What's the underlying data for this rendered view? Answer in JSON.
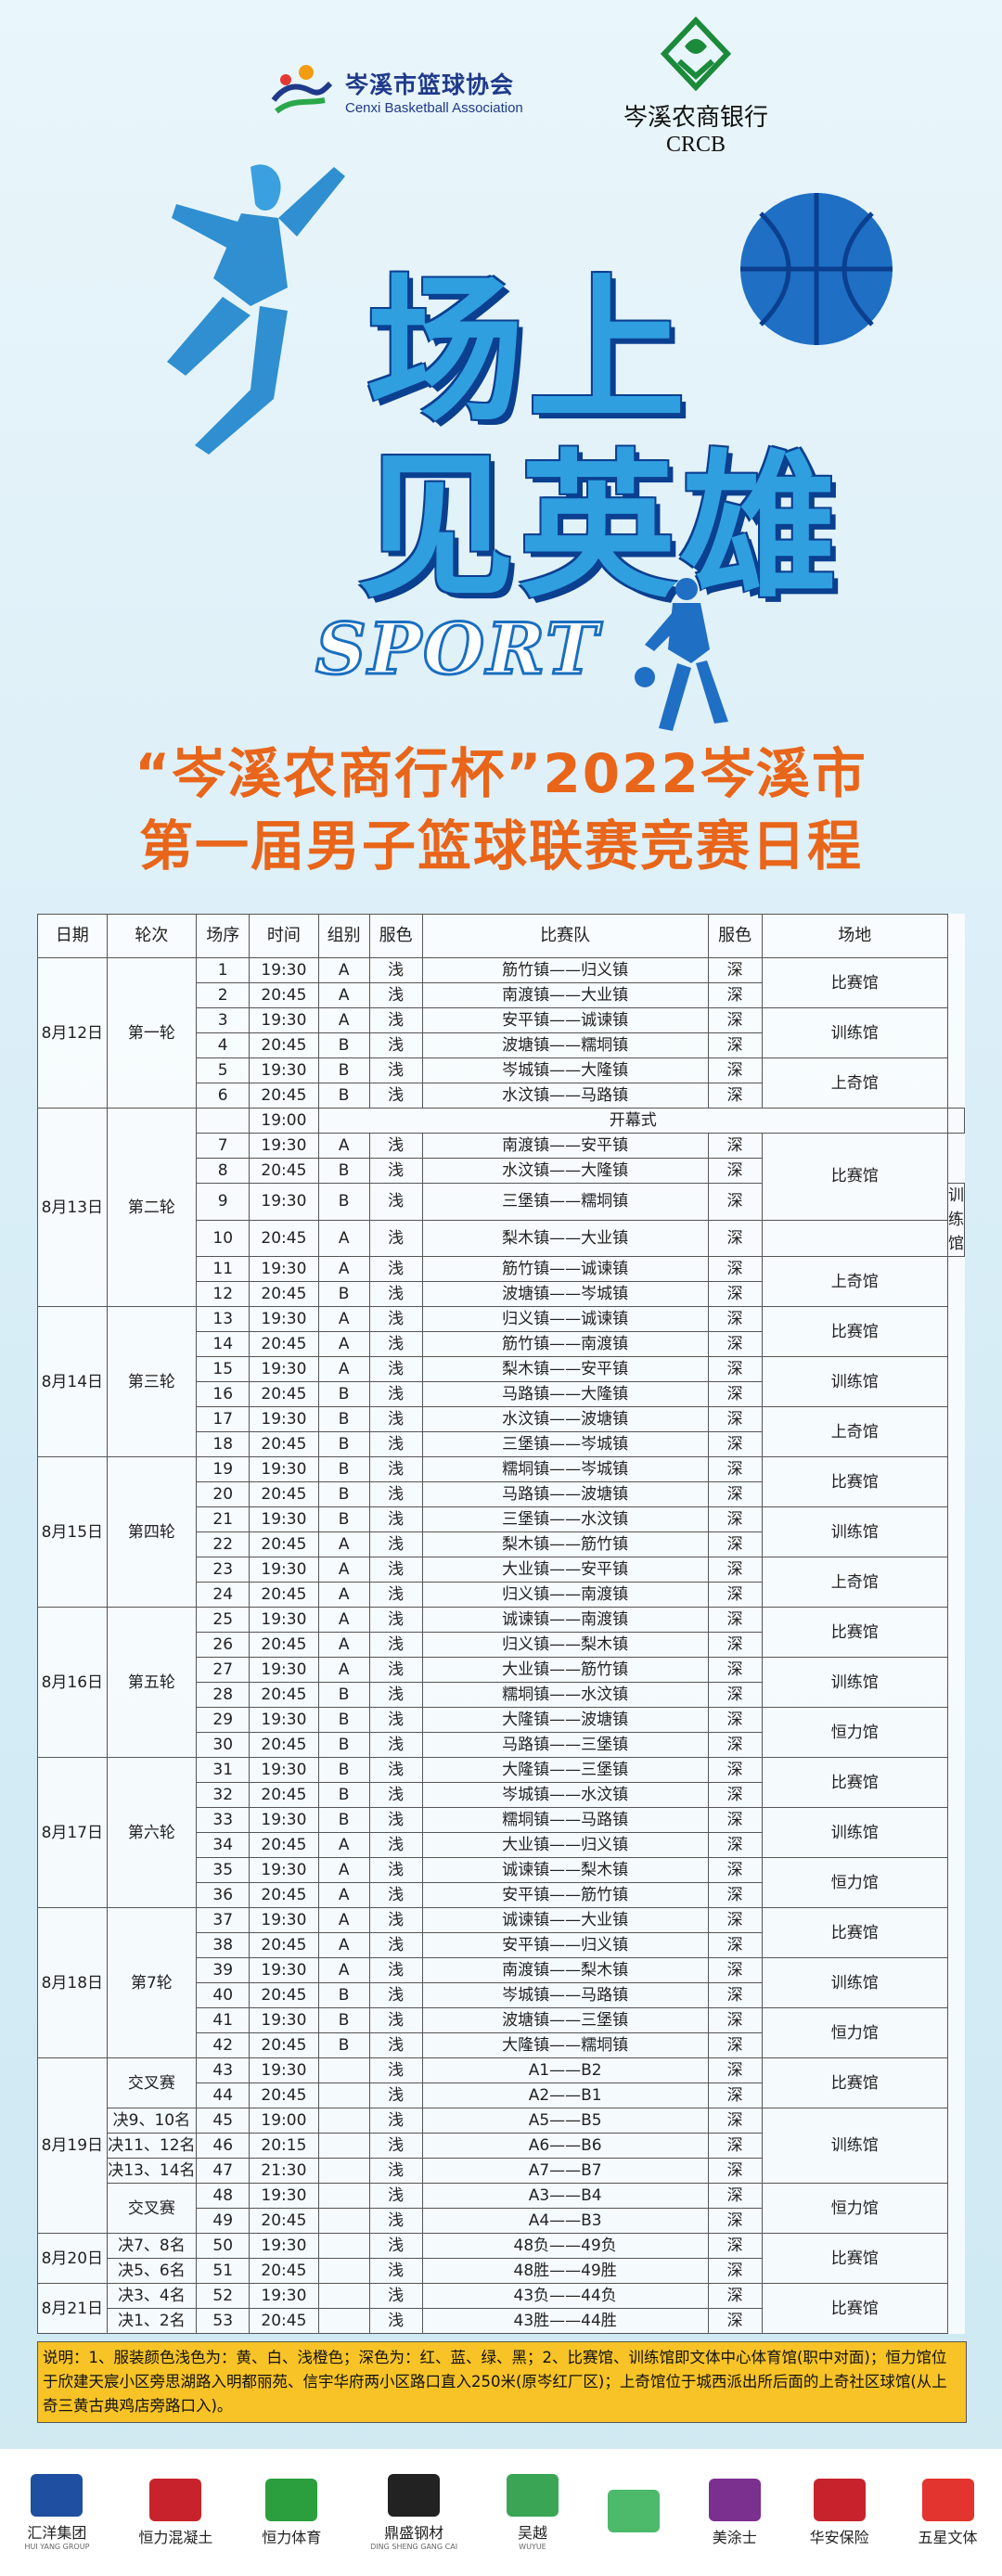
{
  "header": {
    "association_name": "岑溪市篮球协会",
    "association_en": "Cenxi Basketball Association",
    "bank_name": "岑溪农商银行",
    "bank_en": "CRCB",
    "hero_line1": "场上",
    "hero_line2": "见英雄",
    "sport_word": "SPORT"
  },
  "title": {
    "line1": "“岑溪农商行杯”2022岑溪市",
    "line2": "第一届男子篮球联赛竞赛日程"
  },
  "table": {
    "headers": [
      "日期",
      "轮次",
      "场序",
      "时间",
      "组别",
      "服色",
      "比赛队",
      "服色",
      "场地"
    ],
    "groups": [
      {
        "date": "8月12日",
        "round": "第一轮",
        "rows": [
          {
            "no": "1",
            "time": "19:30",
            "grp": "A",
            "c1": "浅",
            "teams": "筋竹镇——归义镇",
            "c2": "深",
            "venue": "比赛馆",
            "span": 2
          },
          {
            "no": "2",
            "time": "20:45",
            "grp": "A",
            "c1": "浅",
            "teams": "南渡镇——大业镇",
            "c2": "深"
          },
          {
            "no": "3",
            "time": "19:30",
            "grp": "A",
            "c1": "浅",
            "teams": "安平镇——诚谏镇",
            "c2": "深",
            "venue": "训练馆",
            "span": 2
          },
          {
            "no": "4",
            "time": "20:45",
            "grp": "B",
            "c1": "浅",
            "teams": "波塘镇——糯垌镇",
            "c2": "深"
          },
          {
            "no": "5",
            "time": "19:30",
            "grp": "B",
            "c1": "浅",
            "teams": "岑城镇——大隆镇",
            "c2": "深",
            "venue": "上奇馆",
            "span": 2
          },
          {
            "no": "6",
            "time": "20:45",
            "grp": "B",
            "c1": "浅",
            "teams": "水汶镇——马路镇",
            "c2": "深"
          }
        ]
      },
      {
        "date": "8月13日",
        "round": "第二轮",
        "rows": [
          {
            "no": "",
            "time": "19:00",
            "opening": "开幕式"
          },
          {
            "no": "7",
            "time": "19:30",
            "grp": "A",
            "c1": "浅",
            "teams": "南渡镇——安平镇",
            "c2": "深",
            "venue": "比赛馆",
            "span": 3
          },
          {
            "no": "8",
            "time": "20:45",
            "grp": "B",
            "c1": "浅",
            "teams": "水汶镇——大隆镇",
            "c2": "深"
          },
          {
            "no": "9",
            "time": "19:30",
            "grp": "B",
            "c1": "浅",
            "teams": "三堡镇——糯垌镇",
            "c2": "深",
            "venue": "训练馆",
            "span": 2
          },
          {
            "no": "10",
            "time": "20:45",
            "grp": "A",
            "c1": "浅",
            "teams": "梨木镇——大业镇",
            "c2": "深"
          },
          {
            "no": "11",
            "time": "19:30",
            "grp": "A",
            "c1": "浅",
            "teams": "筋竹镇——诚谏镇",
            "c2": "深",
            "venue": "上奇馆",
            "span": 2
          },
          {
            "no": "12",
            "time": "20:45",
            "grp": "B",
            "c1": "浅",
            "teams": "波塘镇——岑城镇",
            "c2": "深"
          }
        ]
      },
      {
        "date": "8月14日",
        "round": "第三轮",
        "rows": [
          {
            "no": "13",
            "time": "19:30",
            "grp": "A",
            "c1": "浅",
            "teams": "归义镇——诚谏镇",
            "c2": "深",
            "venue": "比赛馆",
            "span": 2
          },
          {
            "no": "14",
            "time": "20:45",
            "grp": "A",
            "c1": "浅",
            "teams": "筋竹镇——南渡镇",
            "c2": "深"
          },
          {
            "no": "15",
            "time": "19:30",
            "grp": "A",
            "c1": "浅",
            "teams": "梨木镇——安平镇",
            "c2": "深",
            "venue": "训练馆",
            "span": 2
          },
          {
            "no": "16",
            "time": "20:45",
            "grp": "B",
            "c1": "浅",
            "teams": "马路镇——大隆镇",
            "c2": "深"
          },
          {
            "no": "17",
            "time": "19:30",
            "grp": "B",
            "c1": "浅",
            "teams": "水汶镇——波塘镇",
            "c2": "深",
            "venue": "上奇馆",
            "span": 2
          },
          {
            "no": "18",
            "time": "20:45",
            "grp": "B",
            "c1": "浅",
            "teams": "三堡镇——岑城镇",
            "c2": "深"
          }
        ]
      },
      {
        "date": "8月15日",
        "round": "第四轮",
        "rows": [
          {
            "no": "19",
            "time": "19:30",
            "grp": "B",
            "c1": "浅",
            "teams": "糯垌镇——岑城镇",
            "c2": "深",
            "venue": "比赛馆",
            "span": 2
          },
          {
            "no": "20",
            "time": "20:45",
            "grp": "B",
            "c1": "浅",
            "teams": "马路镇——波塘镇",
            "c2": "深"
          },
          {
            "no": "21",
            "time": "19:30",
            "grp": "B",
            "c1": "浅",
            "teams": "三堡镇——水汶镇",
            "c2": "深",
            "venue": "训练馆",
            "span": 2
          },
          {
            "no": "22",
            "time": "20:45",
            "grp": "A",
            "c1": "浅",
            "teams": "梨木镇——筋竹镇",
            "c2": "深"
          },
          {
            "no": "23",
            "time": "19:30",
            "grp": "A",
            "c1": "浅",
            "teams": "大业镇——安平镇",
            "c2": "深",
            "venue": "上奇馆",
            "span": 2
          },
          {
            "no": "24",
            "time": "20:45",
            "grp": "A",
            "c1": "浅",
            "teams": "归义镇——南渡镇",
            "c2": "深"
          }
        ]
      },
      {
        "date": "8月16日",
        "round": "第五轮",
        "rows": [
          {
            "no": "25",
            "time": "19:30",
            "grp": "A",
            "c1": "浅",
            "teams": "诚谏镇——南渡镇",
            "c2": "深",
            "venue": "比赛馆",
            "span": 2
          },
          {
            "no": "26",
            "time": "20:45",
            "grp": "A",
            "c1": "浅",
            "teams": "归义镇——梨木镇",
            "c2": "深"
          },
          {
            "no": "27",
            "time": "19:30",
            "grp": "A",
            "c1": "浅",
            "teams": "大业镇——筋竹镇",
            "c2": "深",
            "venue": "训练馆",
            "span": 2
          },
          {
            "no": "28",
            "time": "20:45",
            "grp": "B",
            "c1": "浅",
            "teams": "糯垌镇——水汶镇",
            "c2": "深"
          },
          {
            "no": "29",
            "time": "19:30",
            "grp": "B",
            "c1": "浅",
            "teams": "大隆镇——波塘镇",
            "c2": "深",
            "venue": "恒力馆",
            "span": 2
          },
          {
            "no": "30",
            "time": "20:45",
            "grp": "B",
            "c1": "浅",
            "teams": "马路镇——三堡镇",
            "c2": "深"
          }
        ]
      },
      {
        "date": "8月17日",
        "round": "第六轮",
        "rows": [
          {
            "no": "31",
            "time": "19:30",
            "grp": "B",
            "c1": "浅",
            "teams": "大隆镇——三堡镇",
            "c2": "深",
            "venue": "比赛馆",
            "span": 2
          },
          {
            "no": "32",
            "time": "20:45",
            "grp": "B",
            "c1": "浅",
            "teams": "岑城镇——水汶镇",
            "c2": "深"
          },
          {
            "no": "33",
            "time": "19:30",
            "grp": "B",
            "c1": "浅",
            "teams": "糯垌镇——马路镇",
            "c2": "深",
            "venue": "训练馆",
            "span": 2
          },
          {
            "no": "34",
            "time": "20:45",
            "grp": "A",
            "c1": "浅",
            "teams": "大业镇——归义镇",
            "c2": "深"
          },
          {
            "no": "35",
            "time": "19:30",
            "grp": "A",
            "c1": "浅",
            "teams": "诚谏镇——梨木镇",
            "c2": "深",
            "venue": "恒力馆",
            "span": 2
          },
          {
            "no": "36",
            "time": "20:45",
            "grp": "A",
            "c1": "浅",
            "teams": "安平镇——筋竹镇",
            "c2": "深"
          }
        ]
      },
      {
        "date": "8月18日",
        "round": "第7轮",
        "rows": [
          {
            "no": "37",
            "time": "19:30",
            "grp": "A",
            "c1": "浅",
            "teams": "诚谏镇——大业镇",
            "c2": "深",
            "venue": "比赛馆",
            "span": 2
          },
          {
            "no": "38",
            "time": "20:45",
            "grp": "A",
            "c1": "浅",
            "teams": "安平镇——归义镇",
            "c2": "深"
          },
          {
            "no": "39",
            "time": "19:30",
            "grp": "A",
            "c1": "浅",
            "teams": "南渡镇——梨木镇",
            "c2": "深",
            "venue": "训练馆",
            "span": 2
          },
          {
            "no": "40",
            "time": "20:45",
            "grp": "B",
            "c1": "浅",
            "teams": "岑城镇——马路镇",
            "c2": "深"
          },
          {
            "no": "41",
            "time": "19:30",
            "grp": "B",
            "c1": "浅",
            "teams": "波塘镇——三堡镇",
            "c2": "深",
            "venue": "恒力馆",
            "span": 2
          },
          {
            "no": "42",
            "time": "20:45",
            "grp": "B",
            "c1": "浅",
            "teams": "大隆镇——糯垌镇",
            "c2": "深"
          }
        ]
      }
    ],
    "finals": {
      "d19": "8月19日",
      "d20": "8月20日",
      "d21": "8月21日",
      "r_cross1": "交叉赛",
      "r_9_10": "决9、10名",
      "r_11_12": "决11、12名",
      "r_13_14": "决13、14名",
      "r_cross2": "交叉赛",
      "r_7_8": "决7、8名",
      "r_5_6": "决5、6名",
      "r_3_4": "决3、4名",
      "r_1_2": "决1、2名",
      "rows": [
        {
          "no": "43",
          "time": "19:30",
          "c1": "浅",
          "teams": "A1——B2",
          "c2": "深"
        },
        {
          "no": "44",
          "time": "20:45",
          "c1": "浅",
          "teams": "A2——B1",
          "c2": "深"
        },
        {
          "no": "45",
          "time": "19:00",
          "c1": "浅",
          "teams": "A5——B5",
          "c2": "深"
        },
        {
          "no": "46",
          "time": "20:15",
          "c1": "浅",
          "teams": "A6——B6",
          "c2": "深"
        },
        {
          "no": "47",
          "time": "21:30",
          "c1": "浅",
          "teams": "A7——B7",
          "c2": "深"
        },
        {
          "no": "48",
          "time": "19:30",
          "c1": "浅",
          "teams": "A3——B4",
          "c2": "深"
        },
        {
          "no": "49",
          "time": "20:45",
          "c1": "浅",
          "teams": "A4——B3",
          "c2": "深"
        },
        {
          "no": "50",
          "time": "19:30",
          "c1": "浅",
          "teams": "48负——49负",
          "c2": "深"
        },
        {
          "no": "51",
          "time": "20:45",
          "c1": "浅",
          "teams": "48胜——49胜",
          "c2": "深"
        },
        {
          "no": "52",
          "time": "19:30",
          "c1": "浅",
          "teams": "43负——44负",
          "c2": "深"
        },
        {
          "no": "53",
          "time": "20:45",
          "c1": "浅",
          "teams": "43胜——44胜",
          "c2": "深"
        }
      ],
      "v_bisai1": "比赛馆",
      "v_xunlian": "训练馆",
      "v_hengli": "恒力馆",
      "v_bisai2": "比赛馆",
      "v_bisai3": "比赛馆"
    }
  },
  "note": "说明：1、服装颜色浅色为：黄、白、浅橙色；深色为：红、蓝、绿、黑；2、比赛馆、训练馆即文体中心体育馆(职中对面)；恒力馆位于欣建天宸小区旁思湖路入明都丽苑、信宇华府两小区路口直入250米(原岑红厂区)；上奇馆位于城西派出所后面的上奇社区球馆(从上奇三黄古典鸡店旁路口入)。",
  "sponsors": [
    {
      "name": "汇洋集团",
      "sub": "HUI YANG GROUP",
      "color": "#1e4fa0"
    },
    {
      "name": "恒力混凝土",
      "sub": "",
      "color": "#c8232c"
    },
    {
      "name": "恒力体育",
      "sub": "",
      "color": "#2b9e3e"
    },
    {
      "name": "鼎盛钢材",
      "sub": "DING SHENG GANG CAI",
      "color": "#222222"
    },
    {
      "name": "吴越",
      "sub": "WUYUE",
      "color": "#3aa655"
    },
    {
      "name": "",
      "sub": "",
      "color": "#4cb96b"
    },
    {
      "name": "美涂士",
      "sub": "",
      "color": "#7b2f8f"
    },
    {
      "name": "华安保险",
      "sub": "",
      "color": "#c8232c"
    },
    {
      "name": "五星文体",
      "sub": "",
      "color": "#e3342f"
    }
  ],
  "colors": {
    "accent": "#e8651a",
    "hero": "#2f9fe0",
    "note_bg": "#f7c326"
  }
}
